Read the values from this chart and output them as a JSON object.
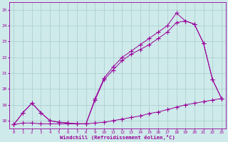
{
  "xlabel": "Windchill (Refroidissement éolien,°C)",
  "xlim": [
    -0.5,
    23.5
  ],
  "ylim": [
    17.5,
    25.5
  ],
  "yticks": [
    18,
    19,
    20,
    21,
    22,
    23,
    24,
    25
  ],
  "xticks": [
    0,
    1,
    2,
    3,
    4,
    5,
    6,
    7,
    8,
    9,
    10,
    11,
    12,
    13,
    14,
    15,
    16,
    17,
    18,
    19,
    20,
    21,
    22,
    23
  ],
  "bg_color": "#ceeaea",
  "line_color": "#990099",
  "grid_color": "#a8cccc",
  "series": [
    {
      "x": [
        0,
        1,
        2,
        3,
        4,
        5,
        6,
        7,
        8,
        9,
        10,
        11,
        12,
        13,
        14,
        15,
        16,
        17,
        18,
        19,
        20,
        21,
        22,
        23
      ],
      "y": [
        17.75,
        17.85,
        17.85,
        17.8,
        17.8,
        17.8,
        17.8,
        17.8,
        17.8,
        17.85,
        17.9,
        18.0,
        18.1,
        18.2,
        18.3,
        18.45,
        18.55,
        18.7,
        18.85,
        19.0,
        19.1,
        19.2,
        19.3,
        19.4
      ]
    },
    {
      "x": [
        0,
        1,
        2,
        3,
        4,
        5,
        6,
        7,
        8,
        9,
        10,
        11,
        12,
        13,
        14,
        15,
        16,
        17,
        18,
        19,
        20,
        21,
        22,
        23
      ],
      "y": [
        17.75,
        18.5,
        19.1,
        18.5,
        18.0,
        17.9,
        17.85,
        17.8,
        17.8,
        19.3,
        20.6,
        21.2,
        21.8,
        22.2,
        22.5,
        22.8,
        23.2,
        23.6,
        24.2,
        24.3,
        24.1,
        22.9,
        20.6,
        19.4
      ]
    },
    {
      "x": [
        0,
        1,
        2,
        3,
        4,
        5,
        6,
        7,
        8,
        9,
        10,
        11,
        12,
        13,
        14,
        15,
        16,
        17,
        18,
        19,
        20,
        21,
        22,
        23
      ],
      "y": [
        17.75,
        18.5,
        19.1,
        18.5,
        18.0,
        17.9,
        17.85,
        17.8,
        17.8,
        19.4,
        20.7,
        21.4,
        22.0,
        22.4,
        22.8,
        23.2,
        23.6,
        24.0,
        24.8,
        24.3,
        24.1,
        22.9,
        20.6,
        19.4
      ]
    }
  ]
}
